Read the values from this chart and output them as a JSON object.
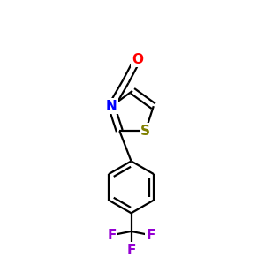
{
  "background": "#ffffff",
  "atom_colors": {
    "O": "#ff0000",
    "N": "#0000ff",
    "S": "#808000",
    "F": "#9400d3",
    "C": "#000000"
  },
  "bond_color": "#000000",
  "bond_width": 1.6,
  "dbo": 0.012,
  "figsize": [
    3.0,
    3.0
  ],
  "dpi": 100
}
